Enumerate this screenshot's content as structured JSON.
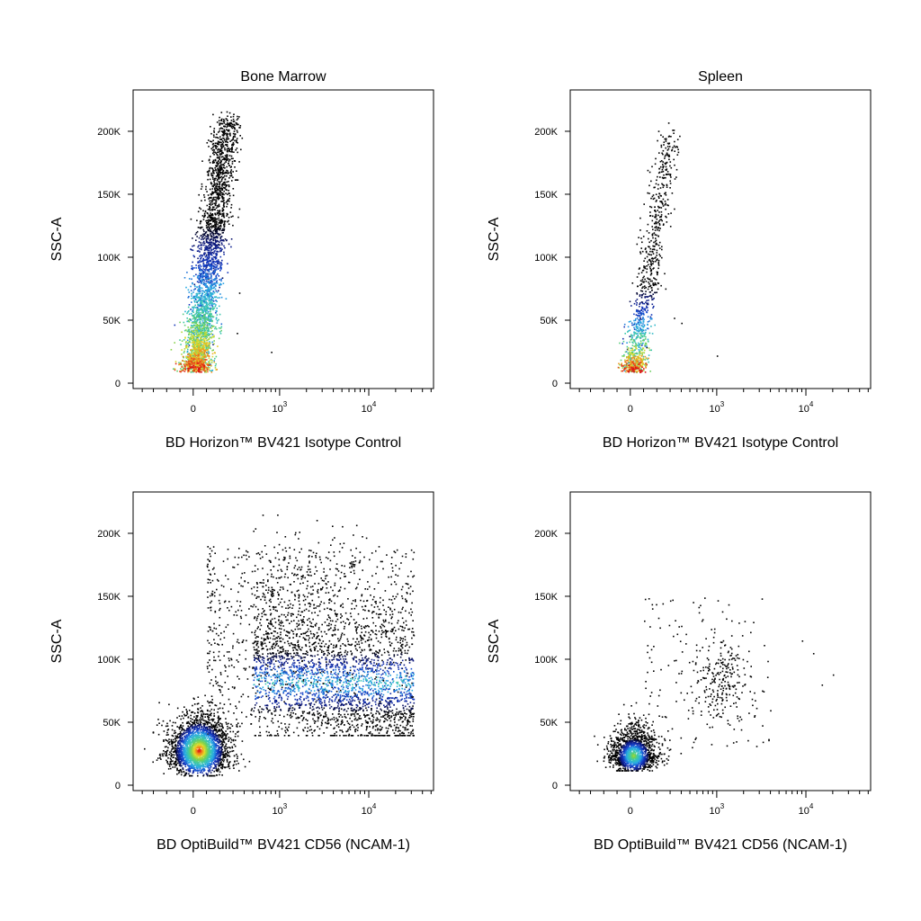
{
  "chart_data": [
    {
      "type": "scatter",
      "subtype": "flow-cytometry-density-dot-plot",
      "title": "Bone Marrow",
      "xlabel": "BD Horizon™ BV421 Isotype Control",
      "ylabel": "SSC-A",
      "x_scale": "biexponential",
      "x_ticks": [
        "0",
        "10^3",
        "10^4"
      ],
      "y_ticks": [
        "0",
        "50K",
        "100K",
        "150K",
        "200K"
      ],
      "ylim": [
        0,
        230000
      ],
      "grid": false,
      "populations": [
        {
          "name": "main",
          "x_center": 0,
          "x_spread": 120,
          "y_center": 28000,
          "y_spread_low": 8000,
          "y_spread_high": 200000,
          "x_slope_per_100K": 120,
          "density": "high",
          "peak_color": "red"
        }
      ],
      "outliers": [
        {
          "x": 800,
          "y": 25000
        },
        {
          "x": 350,
          "y": 72000
        },
        {
          "x": 330,
          "y": 40000
        }
      ]
    },
    {
      "type": "scatter",
      "subtype": "flow-cytometry-density-dot-plot",
      "title": "Spleen",
      "xlabel": "BD Horizon™ BV421 Isotype Control",
      "ylabel": "SSC-A",
      "x_scale": "biexponential",
      "x_ticks": [
        "0",
        "10^3",
        "10^4"
      ],
      "y_ticks": [
        "0",
        "50K",
        "100K",
        "150K",
        "200K"
      ],
      "ylim": [
        0,
        230000
      ],
      "grid": false,
      "populations": [
        {
          "name": "main",
          "x_center": 0,
          "x_spread": 90,
          "y_center": 25000,
          "y_spread_low": 10000,
          "y_spread_high": 205000,
          "x_slope_per_100K": 150,
          "density": "medium",
          "peak_color": "red"
        }
      ],
      "outliers": [
        {
          "x": 1000,
          "y": 22000
        },
        {
          "x": 400,
          "y": 48000
        },
        {
          "x": 330,
          "y": 52000
        }
      ]
    },
    {
      "type": "scatter",
      "subtype": "flow-cytometry-density-dot-plot",
      "title": "",
      "xlabel": "BD OptiBuild™ BV421 CD56 (NCAM-1)",
      "ylabel": "SSC-A",
      "x_scale": "biexponential",
      "x_ticks": [
        "0",
        "10^3",
        "10^4"
      ],
      "y_ticks": [
        "0",
        "50K",
        "100K",
        "150K",
        "200K"
      ],
      "ylim": [
        0,
        230000
      ],
      "grid": false,
      "populations": [
        {
          "name": "CD56-negative",
          "x_center": 50,
          "y_center": 28000,
          "density": "high",
          "peak_color": "red"
        },
        {
          "name": "CD56-positive",
          "x_range": [
            300,
            40000
          ],
          "y_center": 85000,
          "y_range": [
            40000,
            215000
          ],
          "density": "medium",
          "peak_color": "cyan"
        }
      ]
    },
    {
      "type": "scatter",
      "subtype": "flow-cytometry-density-dot-plot",
      "title": "",
      "xlabel": "BD OptiBuild™ BV421 CD56 (NCAM-1)",
      "ylabel": "SSC-A",
      "x_scale": "biexponential",
      "x_ticks": [
        "0",
        "10^3",
        "10^4"
      ],
      "y_ticks": [
        "0",
        "50K",
        "100K",
        "150K",
        "200K"
      ],
      "ylim": [
        0,
        230000
      ],
      "grid": false,
      "populations": [
        {
          "name": "CD56-negative",
          "x_center": 20,
          "y_center": 24000,
          "density": "high",
          "peak_color": "cyan"
        },
        {
          "name": "CD56-positive",
          "x_range": [
            700,
            4000
          ],
          "y_center": 85000,
          "y_range": [
            40000,
            205000
          ],
          "density": "low",
          "peak_color": "black"
        }
      ],
      "outliers": [
        {
          "x": 15000,
          "y": 80000
        },
        {
          "x": 20000,
          "y": 88000
        },
        {
          "x": 12000,
          "y": 105000
        },
        {
          "x": 9000,
          "y": 115000
        }
      ]
    }
  ]
}
